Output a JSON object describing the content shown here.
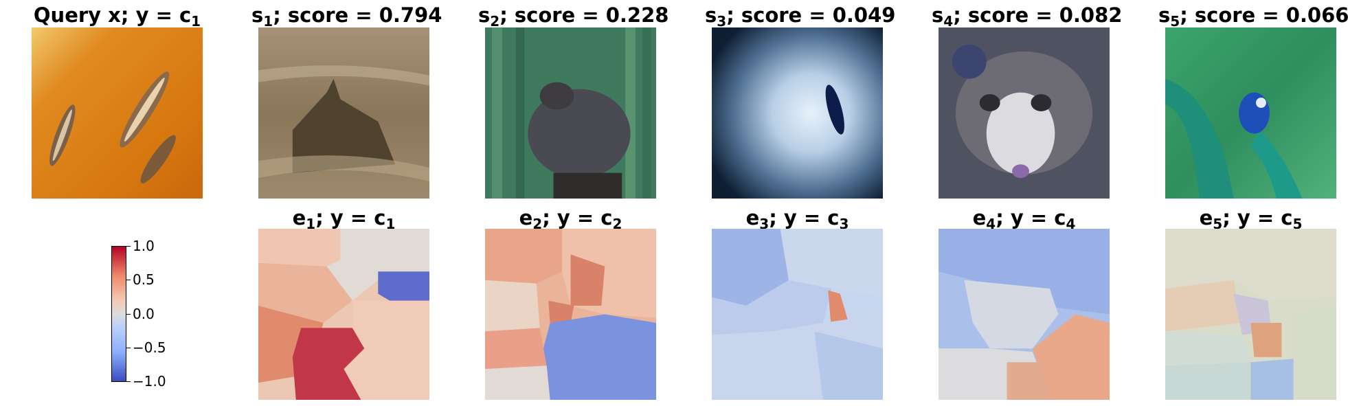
{
  "query": {
    "title_main": "Query x; y = c",
    "title_sub": "1"
  },
  "samples": [
    {
      "prefix": "s",
      "sub": "1",
      "score_label": "; score = ",
      "score": "0.794",
      "expl_prefix": "e",
      "expl_tail": "; y = c",
      "expl_sub": "1"
    },
    {
      "prefix": "s",
      "sub": "2",
      "score_label": "; score = ",
      "score": "0.228",
      "expl_prefix": "e",
      "expl_tail": "; y = c",
      "expl_sub": "2"
    },
    {
      "prefix": "s",
      "sub": "3",
      "score_label": "; score = ",
      "score": "0.049",
      "expl_prefix": "e",
      "expl_tail": "; y = c",
      "expl_sub": "3"
    },
    {
      "prefix": "s",
      "sub": "4",
      "score_label": "; score = ",
      "score": "0.082",
      "expl_prefix": "e",
      "expl_tail": "; y = c",
      "expl_sub": "4"
    },
    {
      "prefix": "s",
      "sub": "5",
      "score_label": "; score = ",
      "score": "0.066",
      "expl_prefix": "e",
      "expl_tail": "; y = c",
      "expl_sub": "5"
    }
  ],
  "colorbar": {
    "ticks": [
      "1.0",
      "0.5",
      "0.0",
      "−0.5",
      "−1.0"
    ],
    "colors": {
      "high": "#b40426",
      "mid": "#dddcdc",
      "low": "#3b4cc0"
    }
  }
}
